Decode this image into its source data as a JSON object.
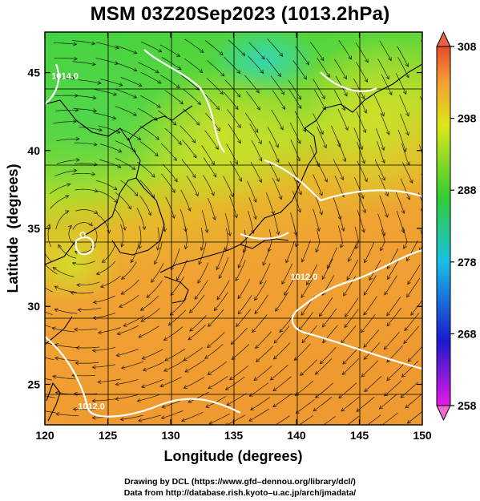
{
  "chart_data": {
    "type": "heatmap",
    "title": "MSM 03Z20Sep2023 (1013.2hPa)",
    "xlabel": "Longitude (degrees)",
    "ylabel": "Latitude  (degrees)",
    "xlim": [
      120,
      150
    ],
    "ylim": [
      22.4,
      47.6
    ],
    "x_ticks": [
      120,
      125,
      130,
      135,
      140,
      145,
      150
    ],
    "y_ticks": [
      25,
      30,
      35,
      40,
      45
    ],
    "grid": true,
    "colorbar": {
      "min": 258,
      "max": 308,
      "ticks": [
        258,
        268,
        278,
        288,
        298,
        308
      ],
      "colors": [
        "#e619e6",
        "#1a1acc",
        "#1abfe6",
        "#33cc33",
        "#dde619",
        "#f2a033",
        "#e84a2a"
      ]
    },
    "contour_labels": [
      {
        "text": "1012.0",
        "lon": 123.7,
        "lat": 23.4
      },
      {
        "text": "1012.0",
        "lon": 140.6,
        "lat": 31.7
      },
      {
        "text": "1014.0",
        "lon": 121.6,
        "lat": 44.6
      }
    ],
    "typhoon_center": {
      "lon": 123.0,
      "lat": 34.6
    }
  },
  "credits": {
    "line1": "Drawing by DCL (https://www.gfd–dennou.org/library/dcl/)",
    "line2": "Data from http://database.rish.kyoto–u.ac.jp/arch/jmadata/"
  }
}
